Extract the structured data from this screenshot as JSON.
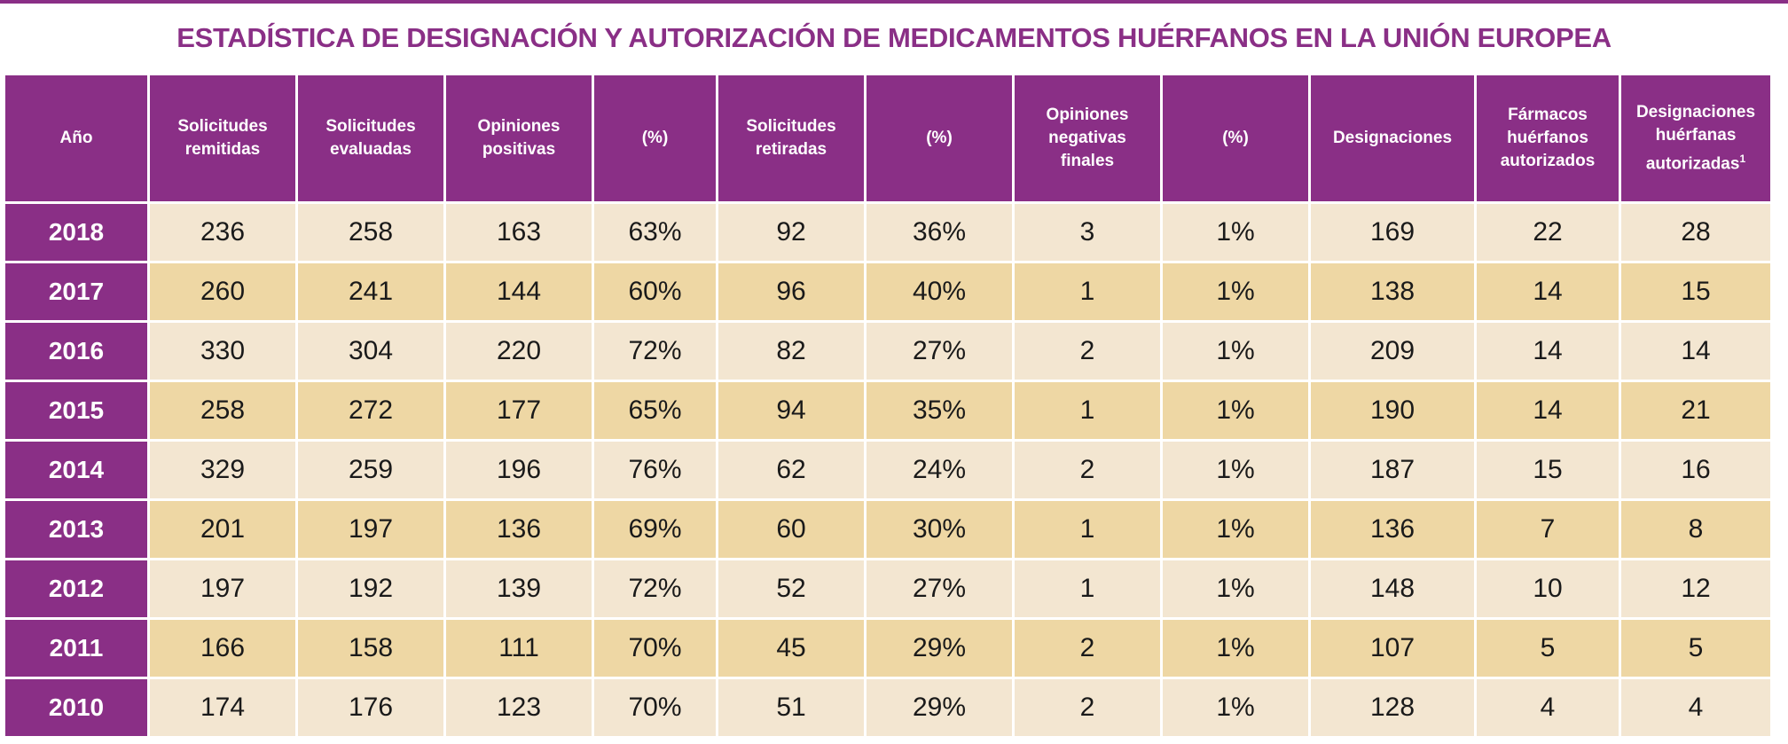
{
  "title": "ESTADÍSTICA DE DESIGNACIÓN Y AUTORIZACIÓN DE MEDICAMENTOS HUÉRFANOS EN LA UNIÓN EUROPEA",
  "colors": {
    "header": "#8a2f86",
    "row_light": "#f3e6d1",
    "row_dark": "#eed7a4"
  },
  "headers": [
    [
      "Año"
    ],
    [
      "Solicitudes",
      "remitidas"
    ],
    [
      "Solicitudes",
      "evaluadas"
    ],
    [
      "Opiniones",
      "positivas"
    ],
    [
      "(%)"
    ],
    [
      "Solicitudes",
      "retiradas"
    ],
    [
      "(%)"
    ],
    [
      "Opiniones",
      "negativas",
      "finales"
    ],
    [
      "(%)"
    ],
    [
      "Designaciones"
    ],
    [
      "Fármacos",
      "huérfanos",
      "autorizados"
    ],
    [
      "Designaciones",
      "huérfanas",
      "autorizadas"
    ]
  ],
  "footnote_marker": "1",
  "rows": [
    [
      "2018",
      "236",
      "258",
      "163",
      "63%",
      "92",
      "36%",
      "3",
      "1%",
      "169",
      "22",
      "28"
    ],
    [
      "2017",
      "260",
      "241",
      "144",
      "60%",
      "96",
      "40%",
      "1",
      "1%",
      "138",
      "14",
      "15"
    ],
    [
      "2016",
      "330",
      "304",
      "220",
      "72%",
      "82",
      "27%",
      "2",
      "1%",
      "209",
      "14",
      "14"
    ],
    [
      "2015",
      "258",
      "272",
      "177",
      "65%",
      "94",
      "35%",
      "1",
      "1%",
      "190",
      "14",
      "21"
    ],
    [
      "2014",
      "329",
      "259",
      "196",
      "76%",
      "62",
      "24%",
      "2",
      "1%",
      "187",
      "15",
      "16"
    ],
    [
      "2013",
      "201",
      "197",
      "136",
      "69%",
      "60",
      "30%",
      "1",
      "1%",
      "136",
      "7",
      "8"
    ],
    [
      "2012",
      "197",
      "192",
      "139",
      "72%",
      "52",
      "27%",
      "1",
      "1%",
      "148",
      "10",
      "12"
    ],
    [
      "2011",
      "166",
      "158",
      "111",
      "70%",
      "45",
      "29%",
      "2",
      "1%",
      "107",
      "5",
      "5"
    ],
    [
      "2010",
      "174",
      "176",
      "123",
      "70%",
      "51",
      "29%",
      "2",
      "1%",
      "128",
      "4",
      "4"
    ]
  ]
}
